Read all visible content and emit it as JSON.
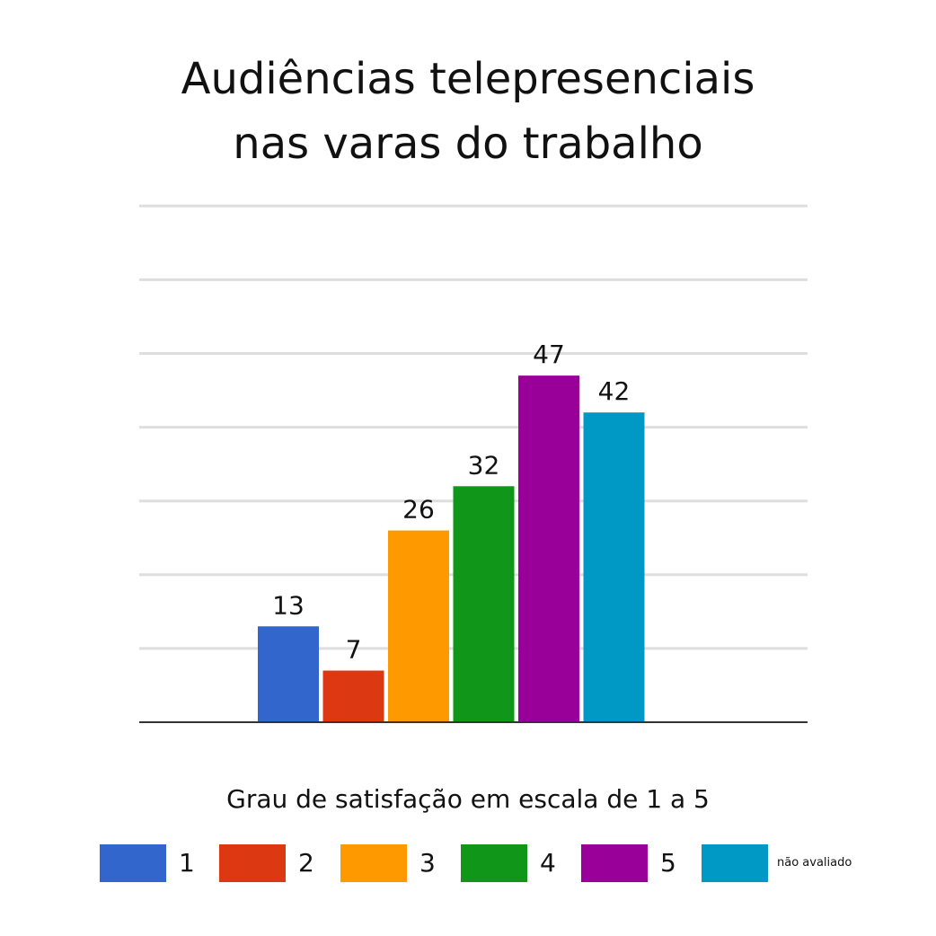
{
  "chart_data": {
    "type": "bar",
    "title_lines": [
      "Audiências telepresenciais",
      "nas varas do trabalho"
    ],
    "xlabel": "Grau de satisfação em escala de 1 a 5",
    "ylabel": "",
    "ylim": [
      0,
      70
    ],
    "grid": true,
    "legend_position": "bottom",
    "categories": [
      "1",
      "2",
      "3",
      "4",
      "5",
      "não avaliado"
    ],
    "values": [
      13,
      7,
      26,
      32,
      47,
      42
    ],
    "colors": [
      "#3366cc",
      "#dc3912",
      "#ff9900",
      "#109618",
      "#990099",
      "#0099c6"
    ]
  }
}
